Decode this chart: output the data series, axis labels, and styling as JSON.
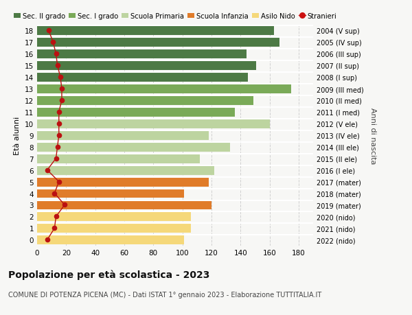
{
  "ages": [
    18,
    17,
    16,
    15,
    14,
    13,
    12,
    11,
    10,
    9,
    8,
    7,
    6,
    5,
    4,
    3,
    2,
    1,
    0
  ],
  "bar_values": [
    163,
    167,
    144,
    151,
    145,
    175,
    149,
    136,
    160,
    118,
    133,
    112,
    122,
    118,
    101,
    120,
    106,
    106,
    101
  ],
  "stranieri": [
    8,
    11,
    13,
    14,
    16,
    17,
    17,
    15,
    15,
    15,
    14,
    13,
    7,
    15,
    12,
    19,
    13,
    12,
    7
  ],
  "right_labels": [
    "2004 (V sup)",
    "2005 (IV sup)",
    "2006 (III sup)",
    "2007 (II sup)",
    "2008 (I sup)",
    "2009 (III med)",
    "2010 (II med)",
    "2011 (I med)",
    "2012 (V ele)",
    "2013 (IV ele)",
    "2014 (III ele)",
    "2015 (II ele)",
    "2016 (I ele)",
    "2017 (mater)",
    "2018 (mater)",
    "2019 (mater)",
    "2020 (nido)",
    "2021 (nido)",
    "2022 (nido)"
  ],
  "bar_colors": [
    "#4d7a45",
    "#4d7a45",
    "#4d7a45",
    "#4d7a45",
    "#4d7a45",
    "#7aaa58",
    "#7aaa58",
    "#7aaa58",
    "#bdd4a0",
    "#bdd4a0",
    "#bdd4a0",
    "#bdd4a0",
    "#bdd4a0",
    "#e07c2a",
    "#e07c2a",
    "#e07c2a",
    "#f5d87a",
    "#f5d87a",
    "#f5d87a"
  ],
  "legend_labels": [
    "Sec. II grado",
    "Sec. I grado",
    "Scuola Primaria",
    "Scuola Infanzia",
    "Asilo Nido",
    "Stranieri"
  ],
  "legend_colors": [
    "#4d7a45",
    "#7aaa58",
    "#bdd4a0",
    "#e07c2a",
    "#f5d87a",
    "#cc1111"
  ],
  "stranieri_color": "#bb1111",
  "ylabel": "Età alunni",
  "right_ylabel": "Anni di nascita",
  "title": "Popolazione per età scolastica - 2023",
  "subtitle": "COMUNE DI POTENZA PICENA (MC) - Dati ISTAT 1° gennaio 2023 - Elaborazione TUTTITALIA.IT",
  "xlim": [
    0,
    190
  ],
  "xticks": [
    0,
    20,
    40,
    60,
    80,
    100,
    120,
    140,
    160,
    180
  ],
  "background_color": "#f7f7f5",
  "grid_color": "#d0d0d0"
}
